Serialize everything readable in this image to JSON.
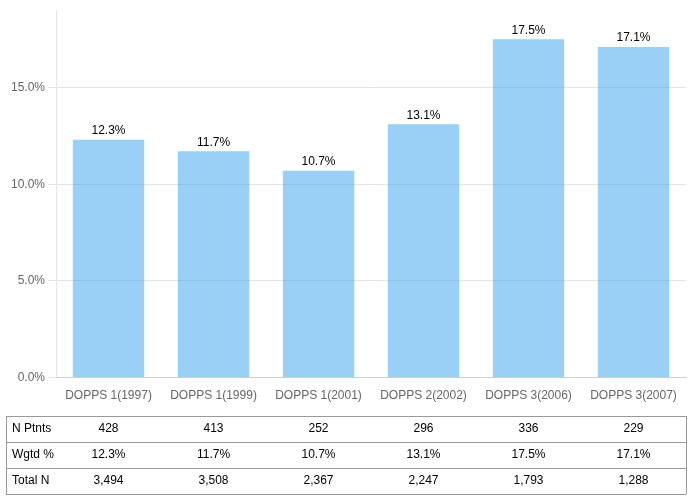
{
  "chart_data": {
    "type": "bar",
    "categories": [
      "DOPPS 1(1997)",
      "DOPPS 1(1999)",
      "DOPPS 1(2001)",
      "DOPPS 2(2002)",
      "DOPPS 3(2006)",
      "DOPPS 3(2007)"
    ],
    "values": [
      0.123,
      0.117,
      0.107,
      0.131,
      0.175,
      0.171
    ],
    "value_labels": [
      "12.3%",
      "11.7%",
      "10.7%",
      "13.1%",
      "17.5%",
      "17.1%"
    ],
    "data_labels": true,
    "ylim": [
      0,
      0.19
    ],
    "yticks": [
      {
        "value": 0,
        "label": "0.0%"
      },
      {
        "value": 0.05,
        "label": "5.0%"
      },
      {
        "value": 0.1,
        "label": "10.0%"
      },
      {
        "value": 0.15,
        "label": "15.0%"
      }
    ],
    "grid": true,
    "table": [
      {
        "name": "N Ptnts",
        "cells": [
          "428",
          "413",
          "252",
          "296",
          "336",
          "229"
        ]
      },
      {
        "name": "Wgtd %",
        "cells": [
          "12.3%",
          "11.7%",
          "10.7%",
          "13.1%",
          "17.5%",
          "17.1%"
        ]
      },
      {
        "name": "Total N",
        "cells": [
          "3,494",
          "3,508",
          "2,367",
          "2,247",
          "1,793",
          "1,288"
        ]
      }
    ]
  }
}
